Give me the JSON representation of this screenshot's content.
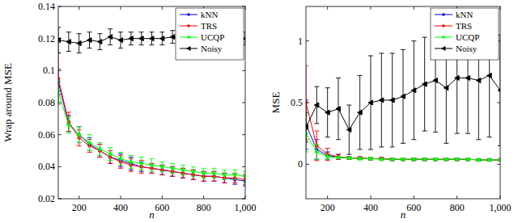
{
  "chart_data": [
    {
      "type": "line",
      "y_label": "Wrap around MSE",
      "x_label": "n",
      "x": [
        100,
        150,
        200,
        250,
        300,
        350,
        400,
        450,
        500,
        550,
        600,
        650,
        700,
        750,
        800,
        850,
        900,
        950,
        1000
      ],
      "xlim": [
        100,
        1000
      ],
      "xticks": [
        200,
        400,
        600,
        800,
        {
          "value": 1000,
          "label": "1,000"
        }
      ],
      "ylim": [
        0.02,
        0.14
      ],
      "yticks": [
        0.02,
        0.04,
        0.06,
        0.08,
        0.1,
        0.12,
        0.14
      ],
      "legend": "upper right",
      "series": [
        {
          "name": "kNN",
          "color": "#0000ff",
          "marker": "circle",
          "values": [
            0.093,
            0.067,
            0.06,
            0.054,
            0.05,
            0.046,
            0.044,
            0.042,
            0.04,
            0.039,
            0.038,
            0.037,
            0.036,
            0.035,
            0.034,
            0.034,
            0.033,
            0.032,
            0.031
          ],
          "errors": [
            0.008,
            0.005,
            0.005,
            0.004,
            0.004,
            0.004,
            0.004,
            0.004,
            0.003,
            0.003,
            0.003,
            0.003,
            0.003,
            0.003,
            0.003,
            0.003,
            0.003,
            0.003,
            0.003
          ]
        },
        {
          "name": "TRS",
          "color": "#ff0000",
          "marker": "circle",
          "values": [
            0.095,
            0.068,
            0.058,
            0.053,
            0.05,
            0.046,
            0.043,
            0.041,
            0.04,
            0.039,
            0.038,
            0.037,
            0.036,
            0.035,
            0.034,
            0.034,
            0.033,
            0.033,
            0.032
          ],
          "errors": [
            0.016,
            0.006,
            0.005,
            0.004,
            0.004,
            0.004,
            0.004,
            0.004,
            0.004,
            0.003,
            0.003,
            0.003,
            0.003,
            0.003,
            0.003,
            0.003,
            0.003,
            0.003,
            0.003
          ]
        },
        {
          "name": "UCQP",
          "color": "#00ff00",
          "marker": "circle",
          "values": [
            0.087,
            0.066,
            0.06,
            0.055,
            0.051,
            0.048,
            0.045,
            0.043,
            0.042,
            0.041,
            0.04,
            0.039,
            0.038,
            0.037,
            0.036,
            0.036,
            0.035,
            0.035,
            0.034
          ],
          "errors": [
            0.007,
            0.005,
            0.005,
            0.005,
            0.004,
            0.004,
            0.004,
            0.004,
            0.004,
            0.004,
            0.003,
            0.003,
            0.003,
            0.003,
            0.003,
            0.003,
            0.003,
            0.003,
            0.003
          ]
        },
        {
          "name": "Noisy",
          "color": "#000000",
          "marker": "triangle-left",
          "values": [
            0.119,
            0.118,
            0.117,
            0.119,
            0.118,
            0.121,
            0.119,
            0.12,
            0.12,
            0.12,
            0.12,
            0.121,
            0.12,
            0.121,
            0.12,
            0.121,
            0.12,
            0.121,
            0.12
          ],
          "errors": [
            0.008,
            0.006,
            0.006,
            0.005,
            0.005,
            0.005,
            0.005,
            0.004,
            0.004,
            0.004,
            0.004,
            0.004,
            0.004,
            0.004,
            0.004,
            0.004,
            0.004,
            0.004,
            0.004
          ]
        }
      ]
    },
    {
      "type": "line",
      "y_label": "MSE",
      "x_label": "n",
      "x": [
        100,
        150,
        200,
        250,
        300,
        350,
        400,
        450,
        500,
        550,
        600,
        650,
        700,
        750,
        800,
        850,
        900,
        950,
        1000
      ],
      "xlim": [
        100,
        1000
      ],
      "xticks": [
        200,
        400,
        600,
        800,
        {
          "value": 1000,
          "label": "1,000"
        }
      ],
      "ylim": [
        -0.28,
        1.28
      ],
      "yticks": [
        0,
        0.5,
        1
      ],
      "legend": "upper right",
      "series": [
        {
          "name": "kNN",
          "color": "#0000ff",
          "marker": "circle",
          "values": [
            0.32,
            0.12,
            0.07,
            0.06,
            0.05,
            0.05,
            0.045,
            0.045,
            0.04,
            0.04,
            0.04,
            0.04,
            0.04,
            0.04,
            0.04,
            0.04,
            0.035,
            0.035,
            0.035
          ],
          "errors": [
            0.2,
            0.08,
            0.03,
            0.02,
            0.01,
            0.01,
            0.01,
            0.01,
            0.01,
            0.01,
            0.01,
            0.01,
            0.01,
            0.01,
            0.01,
            0.01,
            0.01,
            0.01,
            0.01
          ]
        },
        {
          "name": "TRS",
          "color": "#ff0000",
          "marker": "circle",
          "values": [
            0.5,
            0.15,
            0.08,
            0.06,
            0.05,
            0.05,
            0.045,
            0.045,
            0.04,
            0.04,
            0.04,
            0.04,
            0.04,
            0.04,
            0.04,
            0.04,
            0.035,
            0.035,
            0.035
          ],
          "errors": [
            0.3,
            0.12,
            0.05,
            0.02,
            0.01,
            0.01,
            0.01,
            0.01,
            0.01,
            0.01,
            0.01,
            0.01,
            0.01,
            0.01,
            0.01,
            0.01,
            0.01,
            0.01,
            0.01
          ]
        },
        {
          "name": "UCQP",
          "color": "#00ff00",
          "marker": "circle",
          "values": [
            0.25,
            0.1,
            0.06,
            0.055,
            0.05,
            0.045,
            0.045,
            0.04,
            0.04,
            0.04,
            0.04,
            0.04,
            0.04,
            0.04,
            0.04,
            0.04,
            0.035,
            0.035,
            0.035
          ],
          "errors": [
            0.15,
            0.06,
            0.02,
            0.01,
            0.01,
            0.01,
            0.01,
            0.01,
            0.01,
            0.01,
            0.01,
            0.01,
            0.01,
            0.01,
            0.01,
            0.01,
            0.01,
            0.01,
            0.01
          ]
        },
        {
          "name": "Noisy",
          "color": "#000000",
          "marker": "triangle-left",
          "values": [
            0.3,
            0.48,
            0.42,
            0.45,
            0.28,
            0.42,
            0.5,
            0.52,
            0.52,
            0.55,
            0.6,
            0.65,
            0.68,
            0.62,
            0.7,
            0.7,
            0.68,
            0.72,
            0.6
          ],
          "errors": [
            0.12,
            0.15,
            0.2,
            0.25,
            0.2,
            0.3,
            0.38,
            0.38,
            0.38,
            0.38,
            0.4,
            0.38,
            0.42,
            0.45,
            0.45,
            0.45,
            0.48,
            0.5,
            0.45
          ]
        }
      ]
    }
  ]
}
